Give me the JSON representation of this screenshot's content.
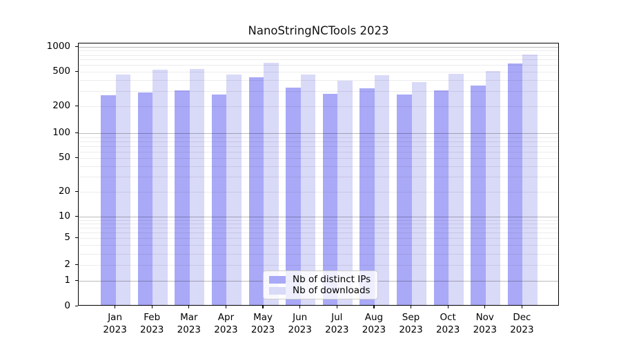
{
  "chart_data": {
    "type": "bar",
    "title": "NanoStringNCTools 2023",
    "categories": [
      "Jan 2023",
      "Feb 2023",
      "Mar 2023",
      "Apr 2023",
      "May 2023",
      "Jun 2023",
      "Jul 2023",
      "Aug 2023",
      "Sep 2023",
      "Oct 2023",
      "Nov 2023",
      "Dec 2023"
    ],
    "month_labels": [
      "Jan",
      "Feb",
      "Mar",
      "Apr",
      "May",
      "Jun",
      "Jul",
      "Aug",
      "Sep",
      "Oct",
      "Nov",
      "Dec"
    ],
    "year_label": "2023",
    "series": [
      {
        "name": "Nb of distinct IPs",
        "color": "#a9a9f7",
        "values": [
          259,
          278,
          295,
          265,
          416,
          314,
          270,
          310,
          264,
          292,
          337,
          601
        ]
      },
      {
        "name": "Nb of downloads",
        "color": "#d9d9f8",
        "values": [
          451,
          512,
          514,
          443,
          612,
          443,
          379,
          441,
          364,
          459,
          491,
          777
        ]
      }
    ],
    "y_ticks": [
      0,
      1,
      2,
      5,
      10,
      20,
      50,
      100,
      200,
      500,
      1000
    ],
    "ylim": [
      0,
      1000
    ],
    "y_scale": "log10(value+1)",
    "grid": true,
    "legend_position": "lower center inside axes",
    "xlabel": "",
    "ylabel": ""
  },
  "colors": {
    "bar_distinct_ips": "#a9a9f7",
    "bar_downloads": "#d9d9f8",
    "grid_major": "#bababa",
    "grid_minor": "#ececec",
    "axis": "#000000",
    "background": "#ffffff",
    "legend_border": "#cccccc"
  }
}
